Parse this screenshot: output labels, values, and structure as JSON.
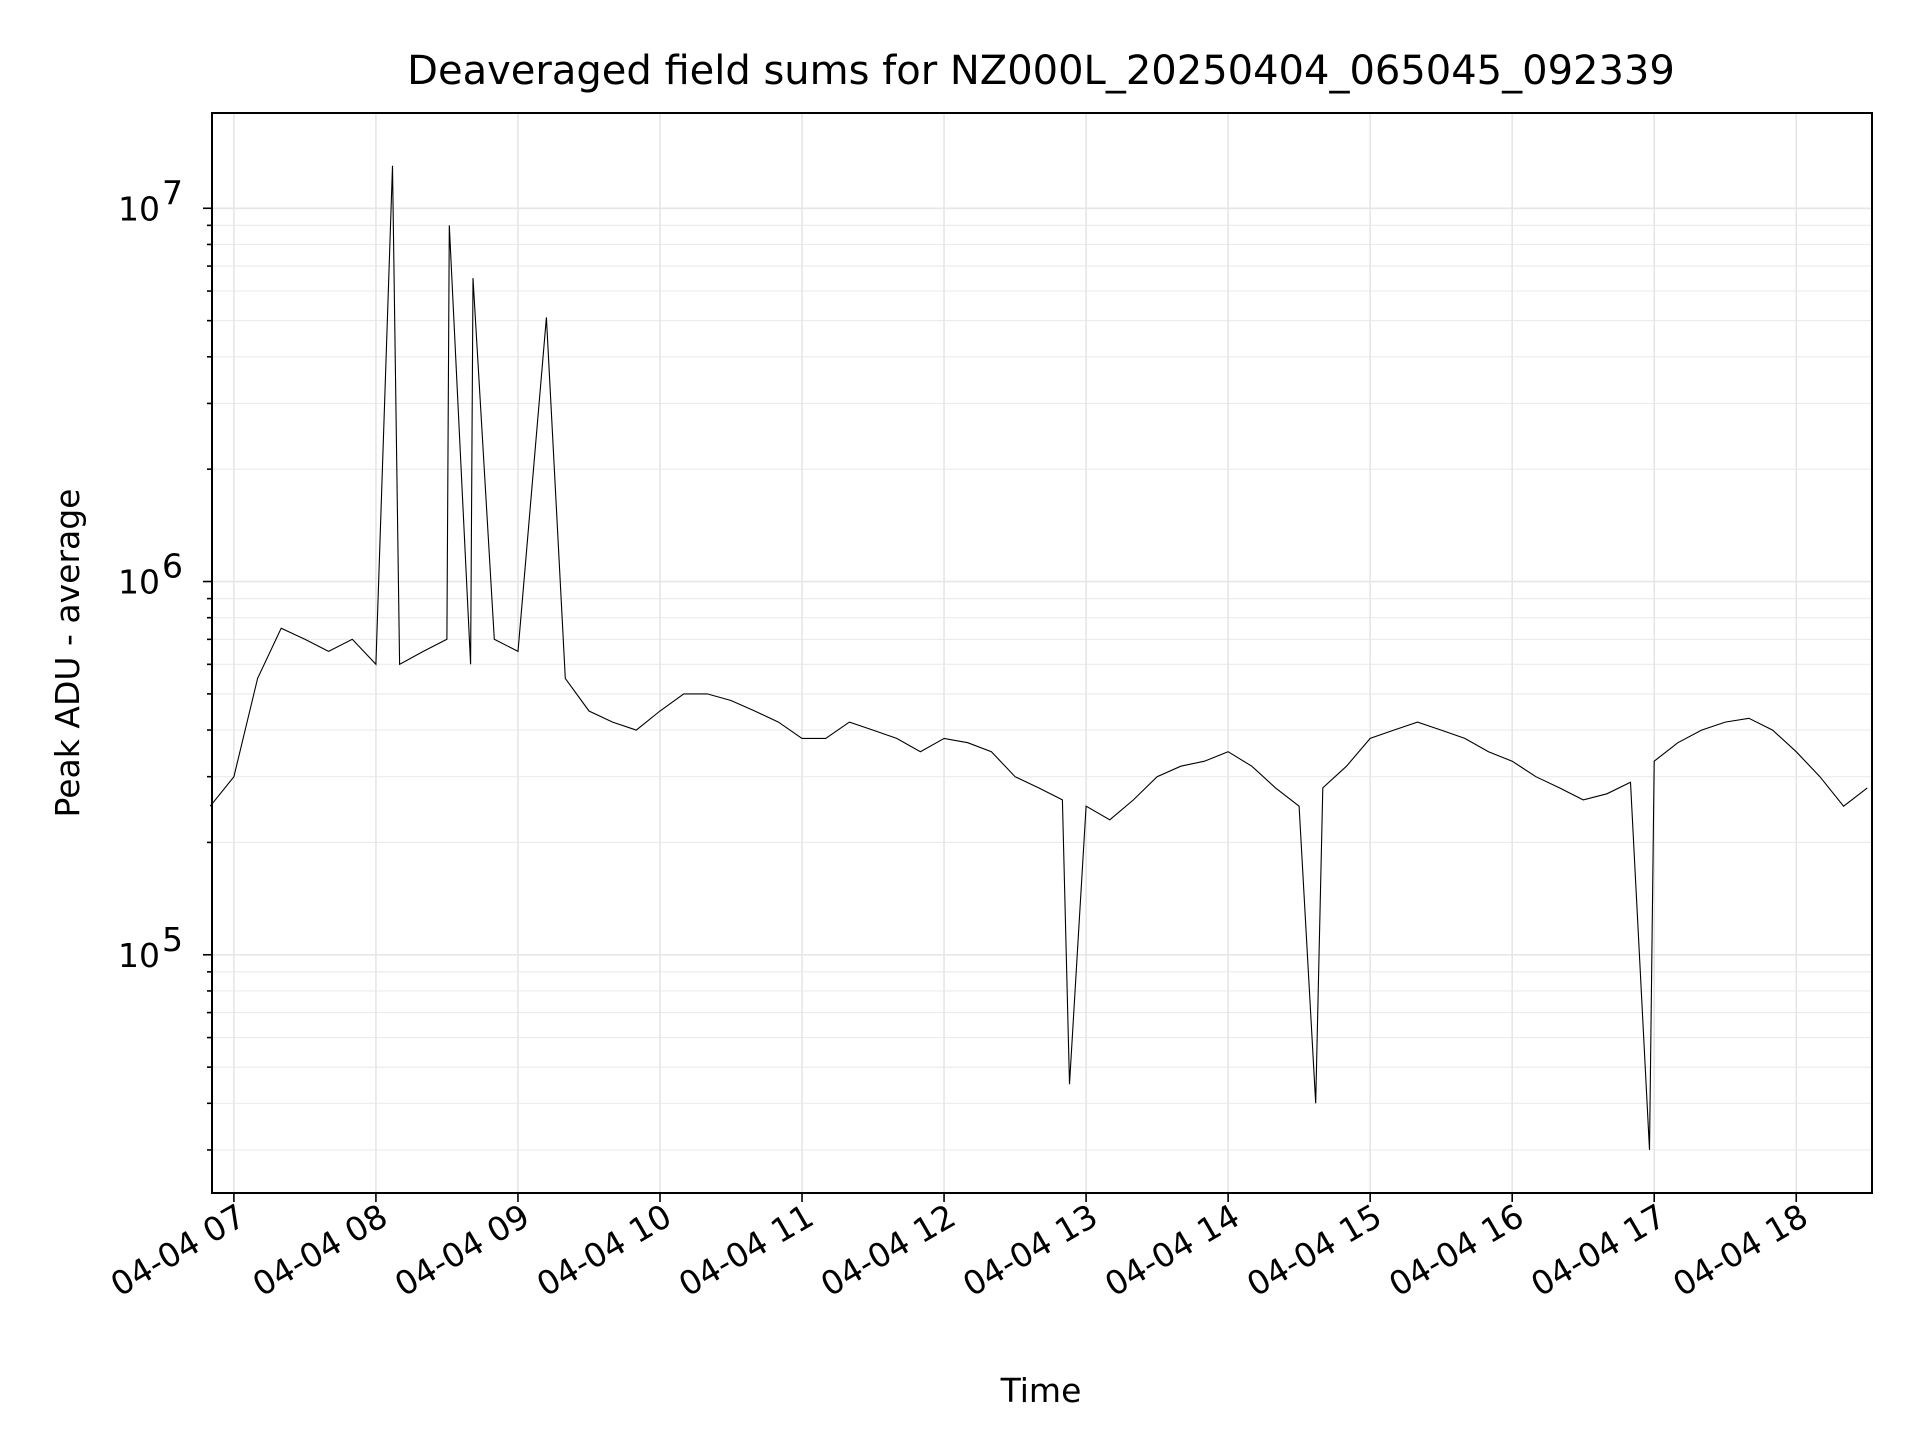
{
  "chart_data": {
    "type": "line",
    "title": "Deaveraged field sums for NZ000L_20250404_065045_092339",
    "xlabel": "Time",
    "ylabel": "Peak ADU - average",
    "yscale": "log",
    "ylim": [
      23000,
      18000000
    ],
    "xlim": [
      "2025-04-04 06:50:45",
      "2025-04-04 18:32:00"
    ],
    "x_ticks": [
      {
        "label": "04-04 07",
        "time": "2025-04-04 07:00"
      },
      {
        "label": "04-04 08",
        "time": "2025-04-04 08:00"
      },
      {
        "label": "04-04 09",
        "time": "2025-04-04 09:00"
      },
      {
        "label": "04-04 10",
        "time": "2025-04-04 10:00"
      },
      {
        "label": "04-04 11",
        "time": "2025-04-04 11:00"
      },
      {
        "label": "04-04 12",
        "time": "2025-04-04 12:00"
      },
      {
        "label": "04-04 13",
        "time": "2025-04-04 13:00"
      },
      {
        "label": "04-04 14",
        "time": "2025-04-04 14:00"
      },
      {
        "label": "04-04 15",
        "time": "2025-04-04 15:00"
      },
      {
        "label": "04-04 16",
        "time": "2025-04-04 16:00"
      },
      {
        "label": "04-04 17",
        "time": "2025-04-04 17:00"
      },
      {
        "label": "04-04 18",
        "time": "2025-04-04 18:00"
      }
    ],
    "y_ticks": [
      {
        "base": "10",
        "exp": "5",
        "value": 100000
      },
      {
        "base": "10",
        "exp": "6",
        "value": 1000000
      },
      {
        "base": "10",
        "exp": "7",
        "value": 10000000
      }
    ],
    "grid": true,
    "series_color": "#000000",
    "series": [
      {
        "x": [
          "06:50",
          "07:00",
          "07:10",
          "07:20",
          "07:30",
          "07:40",
          "07:50",
          "08:00",
          "08:07",
          "08:10",
          "08:20",
          "08:30",
          "08:31",
          "08:40",
          "08:41",
          "08:50",
          "09:00",
          "09:12",
          "09:20",
          "09:30",
          "09:40",
          "09:50",
          "10:00",
          "10:10",
          "10:20",
          "10:30",
          "10:40",
          "10:50",
          "11:00",
          "11:10",
          "11:20",
          "11:30",
          "11:40",
          "11:50",
          "12:00",
          "12:10",
          "12:20",
          "12:30",
          "12:40",
          "12:50",
          "12:53",
          "13:00",
          "13:10",
          "13:20",
          "13:30",
          "13:40",
          "13:50",
          "14:00",
          "14:10",
          "14:20",
          "14:30",
          "14:37",
          "14:40",
          "14:50",
          "15:00",
          "15:10",
          "15:20",
          "15:30",
          "15:40",
          "15:50",
          "16:00",
          "16:10",
          "16:20",
          "16:30",
          "16:40",
          "16:50",
          "16:58",
          "17:00",
          "17:10",
          "17:20",
          "17:30",
          "17:40",
          "17:50",
          "18:00",
          "18:10",
          "18:20",
          "18:30"
        ],
        "y": [
          250000,
          300000,
          550000,
          750000,
          700000,
          650000,
          700000,
          600000,
          13000000,
          600000,
          650000,
          700000,
          9000000,
          600000,
          6500000,
          700000,
          650000,
          5100000,
          550000,
          450000,
          420000,
          400000,
          450000,
          500000,
          500000,
          480000,
          450000,
          420000,
          380000,
          380000,
          420000,
          400000,
          380000,
          350000,
          380000,
          370000,
          350000,
          300000,
          280000,
          260000,
          45000,
          250000,
          230000,
          260000,
          300000,
          320000,
          330000,
          350000,
          320000,
          280000,
          250000,
          40000,
          280000,
          320000,
          380000,
          400000,
          420000,
          400000,
          380000,
          350000,
          330000,
          300000,
          280000,
          260000,
          270000,
          290000,
          30000,
          330000,
          370000,
          400000,
          420000,
          430000,
          400000,
          350000,
          300000,
          250000,
          280000
        ]
      }
    ]
  }
}
